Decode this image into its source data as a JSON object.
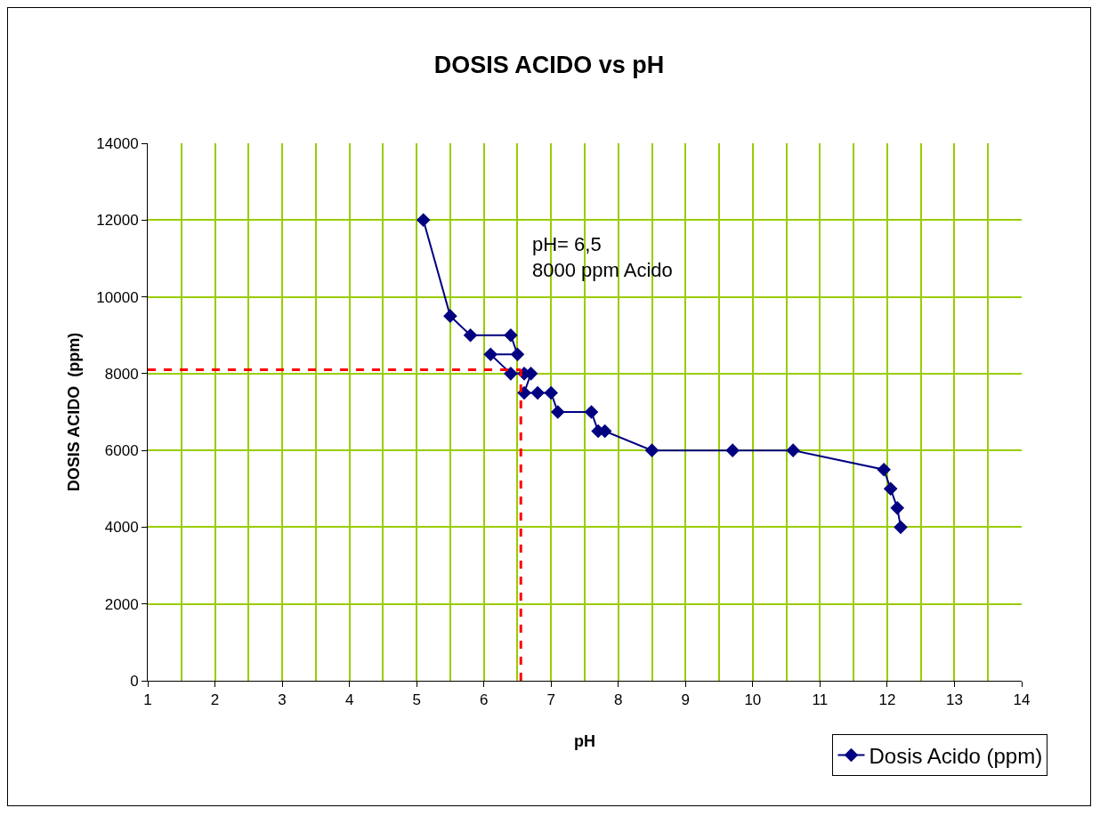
{
  "chart_data": {
    "type": "line",
    "title": "DOSIS ACIDO vs pH",
    "xlabel": "pH",
    "ylabel": "DOSIS ACIDO  (ppm)",
    "x": [
      5.1,
      5.5,
      5.8,
      6.4,
      6.5,
      6.1,
      6.4,
      6.6,
      6.7,
      6.6,
      6.8,
      7.0,
      7.1,
      7.6,
      7.7,
      7.8,
      8.5,
      9.7,
      10.6,
      11.95,
      12.05,
      12.15,
      12.2
    ],
    "series": [
      {
        "name": "Dosis Acido (ppm)",
        "color": "#000080",
        "values": [
          12000,
          9500,
          9000,
          9000,
          8500,
          8500,
          8000,
          8000,
          8000,
          7500,
          7500,
          7500,
          7000,
          7000,
          6500,
          6500,
          6000,
          6000,
          6000,
          5500,
          5000,
          4500,
          4000
        ]
      }
    ],
    "xlim": [
      1,
      14
    ],
    "xticks": [
      1,
      2,
      3,
      4,
      5,
      6,
      7,
      8,
      9,
      10,
      11,
      12,
      13,
      14
    ],
    "ylim": [
      0,
      14000
    ],
    "yticks": [
      0,
      2000,
      4000,
      6000,
      8000,
      10000,
      12000,
      14000
    ],
    "ref_lines": [
      {
        "axis": "y",
        "value": 8100,
        "color": "#ff0000",
        "line_style": "dashed"
      },
      {
        "axis": "x",
        "value": 6.55,
        "color": "#ff0000",
        "line_style": "dashed"
      }
    ],
    "annotations": [
      "pH= 6,5\n8000 ppm Acido"
    ],
    "grid": true,
    "legend": "bottom right",
    "marker": "diamond",
    "line_style": "solid"
  }
}
